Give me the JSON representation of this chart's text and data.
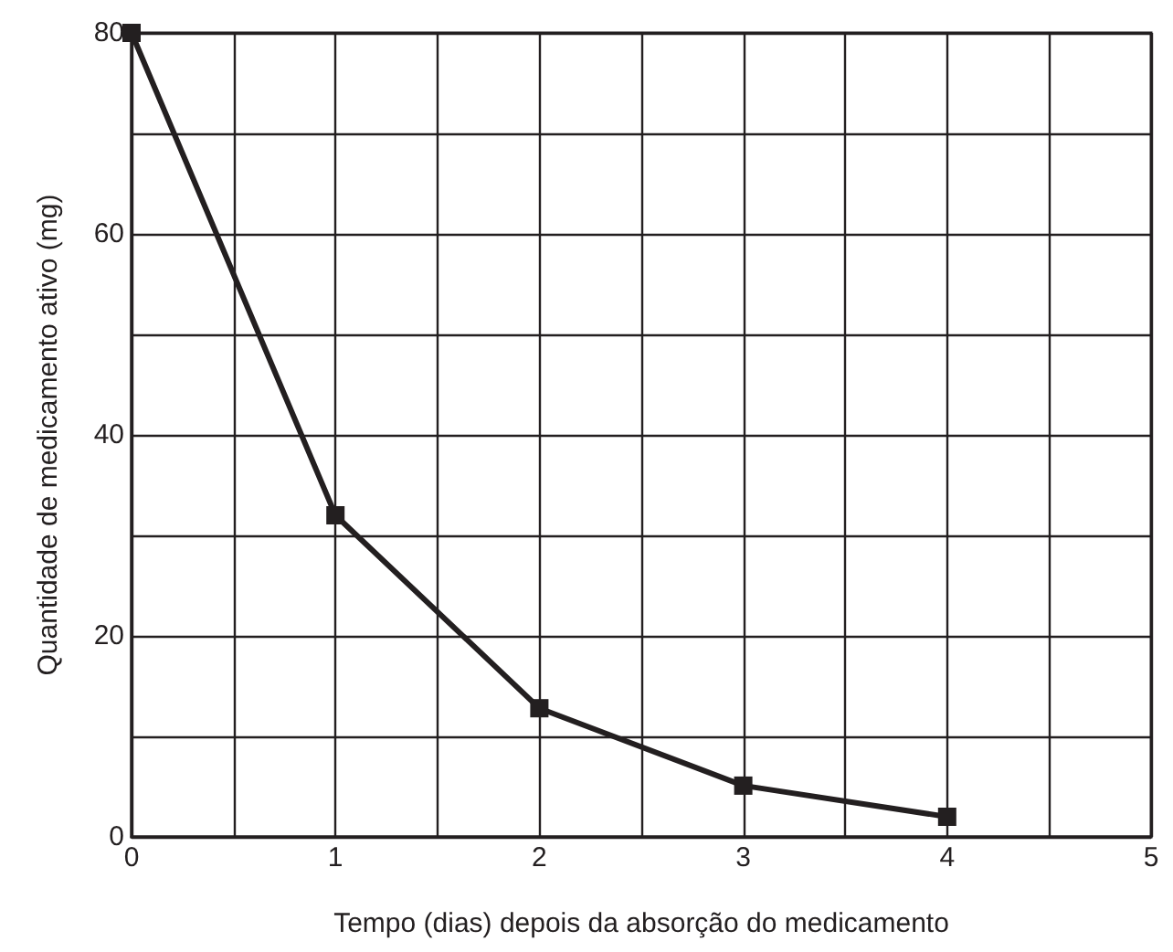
{
  "chart_data": {
    "type": "line",
    "xlabel": "Tempo (dias) depois da absorção do medicamento",
    "ylabel": "Quantidade de medicamento ativo (mg)",
    "x": [
      0,
      1,
      2,
      3,
      4
    ],
    "series": [
      {
        "color": "#231f20",
        "values": [
          80,
          32,
          12.8,
          5.1,
          2
        ]
      }
    ],
    "xlim": [
      0,
      5
    ],
    "xticks": [
      0,
      {
        "value": 0.5,
        "label": null
      },
      1,
      {
        "value": 1.5,
        "label": null
      },
      2,
      {
        "value": 2.5,
        "label": null
      },
      3,
      {
        "value": 3.5,
        "label": null
      },
      4,
      {
        "value": 4.5,
        "label": null
      },
      5
    ],
    "ylim": [
      0,
      80
    ],
    "yticks": [
      0,
      {
        "value": 10,
        "label": null
      },
      20,
      {
        "value": 30,
        "label": null
      },
      40,
      {
        "value": 50,
        "label": null
      },
      60,
      {
        "value": 70,
        "label": null
      },
      80
    ],
    "grid": true,
    "marker": "square",
    "line_style": "solid"
  }
}
